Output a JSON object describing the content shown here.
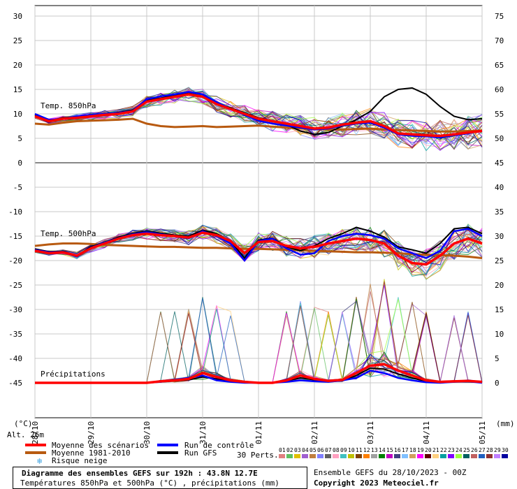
{
  "header": {
    "altitude": "Alt. 26m",
    "left_unit": "(°C)",
    "right_unit": "(mm)"
  },
  "legend": {
    "mean": {
      "label": "Moyenne des scénarios",
      "color": "#ff0000"
    },
    "climo": {
      "label": "Moyenne 1981-2010",
      "color": "#b85a10"
    },
    "snow": {
      "label": "Risque neige",
      "color": "#3aa0e0",
      "icon": "snowflake-icon"
    },
    "control": {
      "label": "Run de contrôle",
      "color": "#0000ff"
    },
    "gfs": {
      "label": "Run GFS",
      "color": "#000000"
    },
    "perts_label": "30 Perts.",
    "perts": [
      {
        "n": "01",
        "c": "#e08080"
      },
      {
        "n": "02",
        "c": "#60c060"
      },
      {
        "n": "03",
        "c": "#e0c000"
      },
      {
        "n": "04",
        "c": "#a060d0"
      },
      {
        "n": "05",
        "c": "#c08040"
      },
      {
        "n": "06",
        "c": "#8080ff"
      },
      {
        "n": "07",
        "c": "#606060"
      },
      {
        "n": "08",
        "c": "#ffa0c0"
      },
      {
        "n": "09",
        "c": "#40c0c0"
      },
      {
        "n": "10",
        "c": "#c0c000"
      },
      {
        "n": "11",
        "c": "#804000"
      },
      {
        "n": "12",
        "c": "#ff8000"
      },
      {
        "n": "13",
        "c": "#a0a0a0"
      },
      {
        "n": "14",
        "c": "#008000"
      },
      {
        "n": "15",
        "c": "#c000c0"
      },
      {
        "n": "16",
        "c": "#404080"
      },
      {
        "n": "17",
        "c": "#80c0ff"
      },
      {
        "n": "18",
        "c": "#d0a060"
      },
      {
        "n": "19",
        "c": "#ff00ff"
      },
      {
        "n": "20",
        "c": "#600000"
      },
      {
        "n": "21",
        "c": "#ffd080"
      },
      {
        "n": "22",
        "c": "#00a0a0"
      },
      {
        "n": "23",
        "c": "#8000ff"
      },
      {
        "n": "24",
        "c": "#a0ff40"
      },
      {
        "n": "25",
        "c": "#006060"
      },
      {
        "n": "26",
        "c": "#c06060"
      },
      {
        "n": "27",
        "c": "#2060c0"
      },
      {
        "n": "28",
        "c": "#903030"
      },
      {
        "n": "29",
        "c": "#c080ff"
      },
      {
        "n": "30",
        "c": "#0000a0"
      }
    ]
  },
  "footer": {
    "title": "Diagramme des ensembles GEFS sur 192h : 43.8N 12.7E",
    "subtitle": "Températures 850hPa et 500hPa (°C) , précipitations (mm)",
    "run": "Ensemble GEFS du 28/10/2023 - 00Z",
    "copyright": "Copyright 2023 Meteociel.fr"
  },
  "chart_data": {
    "type": "line",
    "x_tick_labels": [
      "28/10",
      "29/10",
      "30/10",
      "31/10",
      "01/11",
      "02/11",
      "03/11",
      "04/11",
      "05/11"
    ],
    "x_range_hours": [
      0,
      192
    ],
    "left_axis_ticks": [
      30,
      25,
      20,
      15,
      10,
      5,
      0,
      -5,
      -10,
      -15,
      -20,
      -25,
      -30,
      -35,
      -40,
      -45
    ],
    "right_axis_ticks": [
      75,
      70,
      65,
      60,
      55,
      50,
      45,
      40,
      35,
      30,
      25,
      20,
      15,
      10,
      5,
      0
    ],
    "left_ylim": [
      -45,
      30
    ],
    "right_ylim": [
      0,
      75
    ],
    "grid": true,
    "panel_labels": {
      "t850": "Temp. 850hPa",
      "t500": "Temp. 500hPa",
      "precip": "Précipitations"
    },
    "t850": {
      "x": [
        0,
        6,
        12,
        18,
        24,
        30,
        36,
        42,
        48,
        54,
        60,
        66,
        72,
        78,
        84,
        90,
        96,
        102,
        108,
        114,
        120,
        126,
        132,
        138,
        144,
        150,
        156,
        162,
        168,
        174,
        180,
        186,
        192
      ],
      "mean": [
        9.5,
        8.5,
        9.0,
        9.2,
        9.5,
        9.8,
        10.0,
        10.5,
        12.5,
        13.0,
        13.5,
        14.0,
        13.5,
        12.0,
        11.0,
        10.0,
        9.0,
        8.5,
        8.0,
        7.5,
        7.0,
        7.2,
        7.8,
        8.2,
        8.5,
        7.5,
        6.0,
        5.8,
        5.6,
        5.5,
        5.8,
        6.2,
        6.5
      ],
      "control": [
        10.0,
        8.8,
        9.0,
        9.5,
        9.8,
        10.0,
        10.2,
        10.6,
        13.0,
        13.6,
        14.0,
        14.5,
        14.0,
        12.4,
        11.0,
        9.8,
        8.6,
        8.0,
        7.6,
        7.2,
        6.8,
        7.0,
        7.6,
        8.0,
        8.2,
        7.2,
        5.8,
        5.5,
        5.4,
        5.2,
        5.6,
        6.0,
        6.6
      ],
      "gfs": [
        9.8,
        8.6,
        9.2,
        9.4,
        9.6,
        10.0,
        10.3,
        10.8,
        12.8,
        13.2,
        13.8,
        14.2,
        13.6,
        12.2,
        11.2,
        10.2,
        9.2,
        8.6,
        7.8,
        6.5,
        5.8,
        6.2,
        7.5,
        8.8,
        10.5,
        13.5,
        15.0,
        15.3,
        14.0,
        11.5,
        9.5,
        8.8,
        9.0
      ],
      "climo": [
        8.0,
        7.8,
        8.2,
        8.5,
        8.6,
        8.7,
        8.8,
        9.0,
        8.0,
        7.5,
        7.3,
        7.4,
        7.5,
        7.3,
        7.4,
        7.5,
        7.6,
        7.4,
        7.2,
        7.0,
        6.9,
        6.8,
        6.8,
        6.9,
        7.0,
        6.8,
        6.7,
        6.6,
        6.5,
        6.4,
        6.4,
        6.5,
        6.6
      ]
    },
    "t500": {
      "x": [
        0,
        6,
        12,
        18,
        24,
        30,
        36,
        42,
        48,
        54,
        60,
        66,
        72,
        78,
        84,
        90,
        96,
        102,
        108,
        114,
        120,
        126,
        132,
        138,
        144,
        150,
        156,
        162,
        168,
        174,
        180,
        186,
        192
      ],
      "mean": [
        -18.0,
        -18.5,
        -18.3,
        -19.0,
        -17.5,
        -16.5,
        -15.5,
        -14.8,
        -14.5,
        -14.8,
        -15.0,
        -15.3,
        -14.3,
        -14.8,
        -16.0,
        -18.5,
        -16.2,
        -16.0,
        -17.0,
        -17.5,
        -17.2,
        -16.5,
        -16.0,
        -15.5,
        -15.8,
        -16.5,
        -19.0,
        -20.5,
        -20.8,
        -19.0,
        -16.5,
        -15.5,
        -16.5
      ],
      "control": [
        -17.8,
        -18.3,
        -18.2,
        -19.2,
        -17.4,
        -16.3,
        -15.4,
        -14.6,
        -14.2,
        -14.6,
        -15.0,
        -15.5,
        -14.0,
        -15.0,
        -16.5,
        -20.0,
        -16.0,
        -15.5,
        -17.5,
        -18.8,
        -18.5,
        -16.0,
        -15.0,
        -14.5,
        -14.8,
        -15.5,
        -17.5,
        -18.5,
        -19.5,
        -18.0,
        -14.0,
        -13.5,
        -15.0
      ],
      "gfs": [
        -17.6,
        -18.2,
        -18.1,
        -19.0,
        -17.2,
        -16.2,
        -15.2,
        -14.4,
        -14.0,
        -14.4,
        -14.8,
        -15.0,
        -13.8,
        -14.5,
        -16.0,
        -19.5,
        -15.8,
        -15.4,
        -17.2,
        -18.0,
        -17.0,
        -15.5,
        -14.5,
        -13.2,
        -14.0,
        -15.2,
        -17.2,
        -17.8,
        -18.5,
        -16.5,
        -13.5,
        -13.2,
        -14.5
      ],
      "climo": [
        -17.0,
        -16.7,
        -16.5,
        -16.5,
        -16.6,
        -16.8,
        -16.9,
        -17.0,
        -17.1,
        -17.2,
        -17.2,
        -17.3,
        -17.4,
        -17.4,
        -17.5,
        -17.6,
        -17.6,
        -17.7,
        -17.8,
        -17.9,
        -18.0,
        -18.1,
        -18.2,
        -18.3,
        -18.3,
        -18.4,
        -18.5,
        -18.7,
        -18.8,
        -18.9,
        -19.0,
        -19.2,
        -19.5
      ]
    },
    "precip": {
      "x": [
        0,
        6,
        12,
        18,
        24,
        30,
        36,
        42,
        48,
        54,
        60,
        66,
        72,
        78,
        84,
        90,
        96,
        102,
        108,
        114,
        120,
        126,
        132,
        138,
        144,
        150,
        156,
        162,
        168,
        174,
        180,
        186,
        192
      ],
      "mean": [
        0,
        0,
        0,
        0,
        0,
        0,
        0,
        0,
        0,
        0.3,
        0.5,
        0.8,
        2.0,
        1.2,
        0.5,
        0.2,
        0,
        0,
        0.5,
        1.5,
        0.8,
        0.4,
        0.6,
        2.0,
        3.5,
        3.8,
        2.5,
        1.5,
        0.5,
        0.2,
        0.3,
        0.4,
        0.2
      ],
      "control": [
        0,
        0,
        0,
        0,
        0,
        0,
        0,
        0,
        0,
        0.2,
        0.6,
        1.0,
        1.5,
        0.5,
        0.2,
        0,
        0,
        0,
        0.2,
        0.5,
        0.3,
        0.2,
        0.5,
        1.0,
        2.5,
        2.0,
        1.0,
        0.5,
        0.1,
        0,
        0.2,
        0.3,
        0
      ],
      "gfs": [
        0,
        0,
        0,
        0,
        0,
        0,
        0,
        0,
        0,
        0.2,
        0.4,
        0.6,
        1.2,
        0.8,
        0.3,
        0.1,
        0,
        0,
        0.4,
        1.0,
        0.6,
        0.3,
        0.4,
        1.5,
        3.0,
        2.8,
        1.8,
        1.0,
        0.3,
        0.1,
        0.2,
        0.2,
        0.1
      ]
    }
  }
}
